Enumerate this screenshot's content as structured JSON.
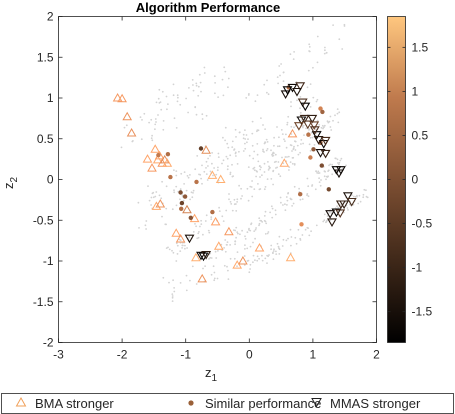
{
  "chart_data": {
    "type": "scatter",
    "title": "Algorithm Performance",
    "xlabel": "z",
    "xlabel_sub": "1",
    "ylabel": "z",
    "ylabel_sub": "2",
    "xlim": [
      -3,
      2
    ],
    "ylim": [
      -2,
      2
    ],
    "xticks": [
      -3,
      -2,
      -1,
      0,
      1,
      2
    ],
    "xtick_labels": [
      "-3",
      "-2",
      "-1",
      "0",
      "1",
      "2"
    ],
    "yticks": [
      -2,
      -1.5,
      -1,
      -0.5,
      0,
      0.5,
      1,
      1.5,
      2
    ],
    "ytick_labels": [
      "-2",
      "-1.5",
      "-1",
      "-0.5",
      "0",
      "0.5",
      "1",
      "1.5",
      "2"
    ],
    "grid": false,
    "legend_position": "bottom-outside",
    "colorbar": {
      "min": -1.85,
      "max": 1.85,
      "ticks": [
        -1.5,
        -1,
        -0.5,
        0,
        0.5,
        1,
        1.5
      ],
      "tick_labels": [
        "-1.5",
        "-1",
        "-0.5",
        "0",
        "0.5",
        "1",
        "1.5"
      ],
      "colormap": "copper",
      "low_color": "#000000",
      "high_color": "#ffc77f"
    },
    "background_color": "#d3d3d3",
    "series": [
      {
        "name": "BMA stronger",
        "marker": "triangle-up",
        "points": [
          {
            "x": -2.07,
            "y": 1.0,
            "c": 1.0
          },
          {
            "x": -2.0,
            "y": 0.99,
            "c": 1.0
          },
          {
            "x": -1.92,
            "y": 0.77,
            "c": 0.9
          },
          {
            "x": -1.85,
            "y": 0.57,
            "c": 0.85
          },
          {
            "x": -1.6,
            "y": 0.25,
            "c": 1.2
          },
          {
            "x": -1.48,
            "y": 0.37,
            "c": 1.2
          },
          {
            "x": -1.44,
            "y": 0.24,
            "c": 1.3
          },
          {
            "x": -1.41,
            "y": 0.29,
            "c": 1.1
          },
          {
            "x": -1.37,
            "y": 0.2,
            "c": 1.0
          },
          {
            "x": -1.33,
            "y": 0.24,
            "c": 0.8
          },
          {
            "x": -1.29,
            "y": 0.2,
            "c": 1.3
          },
          {
            "x": -1.53,
            "y": 0.14,
            "c": 1.0
          },
          {
            "x": -1.46,
            "y": -0.33,
            "c": 1.3
          },
          {
            "x": -1.4,
            "y": -0.3,
            "c": 0.9
          },
          {
            "x": -1.15,
            "y": -0.66,
            "c": 1.2
          },
          {
            "x": -1.08,
            "y": -0.73,
            "c": 1.0
          },
          {
            "x": -0.98,
            "y": -0.37,
            "c": 0.6
          },
          {
            "x": -0.86,
            "y": -0.48,
            "c": 1.2
          },
          {
            "x": -0.84,
            "y": -0.96,
            "c": 1.4
          },
          {
            "x": -0.74,
            "y": -1.22,
            "c": 0.9
          },
          {
            "x": -0.68,
            "y": 0.36,
            "c": 0.8
          },
          {
            "x": -0.58,
            "y": 0.05,
            "c": 1.4
          },
          {
            "x": -0.53,
            "y": -0.52,
            "c": 1.1
          },
          {
            "x": -0.45,
            "y": 0.0,
            "c": 1.4
          },
          {
            "x": -0.32,
            "y": -0.64,
            "c": 1.0
          },
          {
            "x": -0.19,
            "y": -1.05,
            "c": 1.3
          },
          {
            "x": -0.1,
            "y": -1.0,
            "c": 0.9
          },
          {
            "x": 0.16,
            "y": -0.84,
            "c": 1.2
          },
          {
            "x": 0.55,
            "y": 0.2,
            "c": 1.3
          },
          {
            "x": 0.65,
            "y": -0.96,
            "c": 1.4
          },
          {
            "x": 0.68,
            "y": 0.56,
            "c": 1.0
          },
          {
            "x": -0.48,
            "y": -0.82,
            "c": 1.3
          }
        ]
      },
      {
        "name": "Similar performance",
        "marker": "circle",
        "points": [
          {
            "x": -1.43,
            "y": 0.3,
            "c": 0.4
          },
          {
            "x": -1.28,
            "y": 0.31,
            "c": 0.2
          },
          {
            "x": -1.24,
            "y": 0.03,
            "c": 0.3
          },
          {
            "x": -1.08,
            "y": -0.16,
            "c": -0.4
          },
          {
            "x": -1.06,
            "y": -0.29,
            "c": -0.6
          },
          {
            "x": -1.01,
            "y": -0.21,
            "c": -0.2
          },
          {
            "x": -0.92,
            "y": -0.47,
            "c": -0.3
          },
          {
            "x": -1.07,
            "y": -0.36,
            "c": 0.2
          },
          {
            "x": -0.83,
            "y": -0.03,
            "c": 0.3
          },
          {
            "x": -0.76,
            "y": 0.38,
            "c": -0.7
          },
          {
            "x": -0.58,
            "y": -0.4,
            "c": 0.2
          },
          {
            "x": 0.62,
            "y": 1.13,
            "c": 0.2
          },
          {
            "x": 0.93,
            "y": 0.55,
            "c": 0.3
          },
          {
            "x": 0.96,
            "y": 0.27,
            "c": 0.5
          },
          {
            "x": 1.01,
            "y": 0.37,
            "c": -0.2
          },
          {
            "x": 1.12,
            "y": 0.87,
            "c": 0.6
          },
          {
            "x": 1.15,
            "y": 0.83,
            "c": 0.0
          },
          {
            "x": 1.14,
            "y": 0.17,
            "c": -0.4
          },
          {
            "x": 1.12,
            "y": 0.45,
            "c": 0.1
          },
          {
            "x": 1.25,
            "y": -0.12,
            "c": -0.5
          },
          {
            "x": 0.82,
            "y": -0.55,
            "c": 0.8
          },
          {
            "x": 0.8,
            "y": -0.18,
            "c": 0.2
          }
        ]
      },
      {
        "name": "MMAS stronger",
        "marker": "triangle-down",
        "points": [
          {
            "x": 0.57,
            "y": 1.05,
            "c": -1.6
          },
          {
            "x": 0.6,
            "y": 1.1,
            "c": -1.8
          },
          {
            "x": 0.68,
            "y": 1.13,
            "c": -1.7
          },
          {
            "x": 0.8,
            "y": 1.15,
            "c": -1.1
          },
          {
            "x": 0.75,
            "y": 1.08,
            "c": -1.5
          },
          {
            "x": 0.84,
            "y": 0.95,
            "c": -1.0
          },
          {
            "x": 0.88,
            "y": 0.9,
            "c": -1.8
          },
          {
            "x": 0.82,
            "y": 0.73,
            "c": -1.7
          },
          {
            "x": 0.87,
            "y": 0.75,
            "c": -1.2
          },
          {
            "x": 0.92,
            "y": 0.68,
            "c": -0.8
          },
          {
            "x": 0.78,
            "y": 0.66,
            "c": -0.5
          },
          {
            "x": 0.99,
            "y": 0.75,
            "c": -1.3
          },
          {
            "x": 1.02,
            "y": 0.67,
            "c": -0.6
          },
          {
            "x": 1.06,
            "y": 0.55,
            "c": -1.8
          },
          {
            "x": 1.09,
            "y": 0.49,
            "c": -1.4
          },
          {
            "x": 1.17,
            "y": 0.44,
            "c": -1.7
          },
          {
            "x": 1.2,
            "y": 0.48,
            "c": -1.0
          },
          {
            "x": 1.12,
            "y": 0.33,
            "c": -1.6
          },
          {
            "x": 1.2,
            "y": 0.32,
            "c": -1.2
          },
          {
            "x": 1.03,
            "y": 0.61,
            "c": -0.9
          },
          {
            "x": 1.37,
            "y": 0.12,
            "c": -1.8
          },
          {
            "x": 1.41,
            "y": 0.08,
            "c": -1.6
          },
          {
            "x": 1.44,
            "y": 0.12,
            "c": -1.7
          },
          {
            "x": 1.55,
            "y": -0.2,
            "c": -1.5
          },
          {
            "x": 1.61,
            "y": -0.27,
            "c": -1.0
          },
          {
            "x": 1.49,
            "y": -0.3,
            "c": -1.3
          },
          {
            "x": 1.37,
            "y": -0.4,
            "c": -1.8
          },
          {
            "x": 1.3,
            "y": -0.52,
            "c": -1.4
          },
          {
            "x": 1.43,
            "y": -0.41,
            "c": -0.9
          },
          {
            "x": 1.44,
            "y": -0.3,
            "c": -1.2
          },
          {
            "x": -0.94,
            "y": -0.72,
            "c": -1.5
          },
          {
            "x": -0.76,
            "y": -0.93,
            "c": -1.6
          },
          {
            "x": -0.72,
            "y": -0.94,
            "c": -1.8
          },
          {
            "x": -0.68,
            "y": -0.92,
            "c": -1.3
          },
          {
            "x": 1.27,
            "y": -0.42,
            "c": -1.6
          }
        ]
      }
    ],
    "background_note_ignored": ""
  }
}
